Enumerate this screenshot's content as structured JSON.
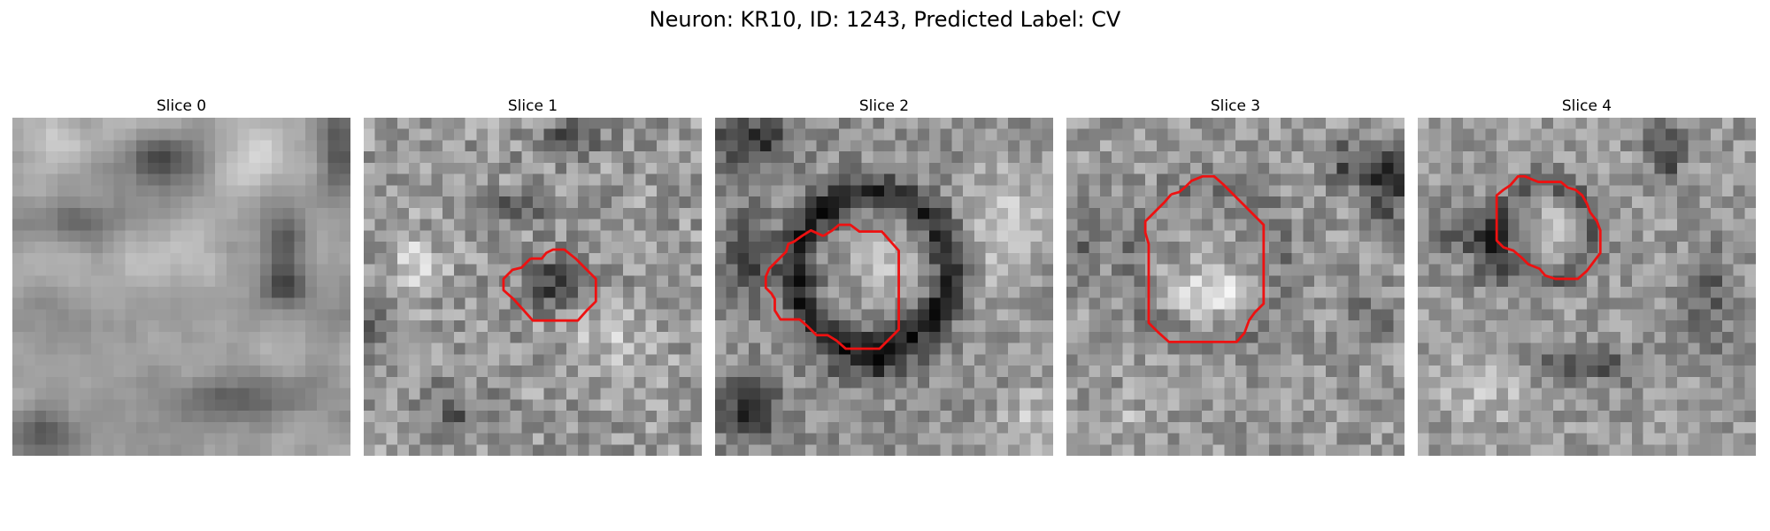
{
  "figure": {
    "title": "Neuron: KR10, ID: 1243, Predicted Label: CV",
    "contour_color": "#ee1111"
  },
  "panels": [
    {
      "title": "Slice 0",
      "pattern": "blurry-dark-vessel",
      "contour": []
    },
    {
      "title": "Slice 1",
      "pattern": "small-dark-cell",
      "contour": [
        [
          14.8,
          12.5
        ],
        [
          15.8,
          12.5
        ],
        [
          16.2,
          12.0
        ],
        [
          16.8,
          11.7
        ],
        [
          17.8,
          11.7
        ],
        [
          18.8,
          12.5
        ],
        [
          19.6,
          13.3
        ],
        [
          20.6,
          14.3
        ],
        [
          20.6,
          15.3
        ],
        [
          20.6,
          16.3
        ],
        [
          19.8,
          17.1
        ],
        [
          19.0,
          18.0
        ],
        [
          18.0,
          18.0
        ],
        [
          17.0,
          18.0
        ],
        [
          16.0,
          18.0
        ],
        [
          15.0,
          18.0
        ],
        [
          14.2,
          17.1
        ],
        [
          13.3,
          16.1
        ],
        [
          12.4,
          15.3
        ],
        [
          12.4,
          14.3
        ],
        [
          13.2,
          13.5
        ],
        [
          14.0,
          13.3
        ],
        [
          14.8,
          12.5
        ]
      ]
    },
    {
      "title": "Slice 2",
      "pattern": "ring-cell",
      "contour": [
        [
          9.6,
          10.5
        ],
        [
          10.4,
          10.0
        ],
        [
          11.0,
          9.5
        ],
        [
          12.0,
          9.5
        ],
        [
          12.8,
          10.1
        ],
        [
          13.8,
          10.1
        ],
        [
          14.8,
          10.1
        ],
        [
          15.5,
          10.9
        ],
        [
          16.3,
          11.8
        ],
        [
          16.3,
          12.8
        ],
        [
          16.3,
          13.8
        ],
        [
          16.3,
          14.8
        ],
        [
          16.3,
          15.8
        ],
        [
          16.3,
          16.8
        ],
        [
          16.3,
          17.8
        ],
        [
          16.3,
          18.8
        ],
        [
          15.5,
          19.6
        ],
        [
          14.6,
          20.5
        ],
        [
          13.6,
          20.5
        ],
        [
          12.6,
          20.5
        ],
        [
          11.6,
          20.5
        ],
        [
          10.8,
          19.8
        ],
        [
          10.0,
          19.3
        ],
        [
          9.0,
          19.3
        ],
        [
          8.2,
          18.5
        ],
        [
          7.5,
          17.9
        ],
        [
          5.8,
          17.9
        ],
        [
          5.3,
          17.1
        ],
        [
          5.3,
          16.1
        ],
        [
          5.0,
          15.6
        ],
        [
          4.5,
          15.1
        ],
        [
          4.5,
          14.1
        ],
        [
          4.8,
          13.4
        ],
        [
          5.3,
          12.9
        ],
        [
          6.3,
          11.9
        ],
        [
          6.5,
          11.2
        ],
        [
          7.0,
          11.0
        ],
        [
          7.7,
          10.5
        ],
        [
          8.5,
          10.0
        ],
        [
          9.6,
          10.5
        ]
      ]
    },
    {
      "title": "Slice 3",
      "pattern": "bright-nucleus",
      "contour": [
        [
          9.3,
          6.8
        ],
        [
          10.0,
          6.6
        ],
        [
          10.6,
          6.1
        ],
        [
          11.1,
          5.6
        ],
        [
          12.1,
          5.2
        ],
        [
          13.1,
          5.2
        ],
        [
          13.9,
          5.9
        ],
        [
          14.8,
          6.8
        ],
        [
          15.7,
          7.7
        ],
        [
          16.6,
          8.6
        ],
        [
          17.5,
          9.5
        ],
        [
          17.5,
          10.5
        ],
        [
          17.5,
          11.5
        ],
        [
          17.5,
          12.5
        ],
        [
          17.5,
          13.5
        ],
        [
          17.5,
          14.5
        ],
        [
          17.5,
          15.5
        ],
        [
          17.5,
          16.5
        ],
        [
          16.7,
          17.3
        ],
        [
          16.2,
          18.0
        ],
        [
          15.8,
          19.1
        ],
        [
          15.1,
          19.9
        ],
        [
          14.1,
          19.9
        ],
        [
          13.1,
          19.9
        ],
        [
          12.1,
          19.9
        ],
        [
          11.1,
          19.9
        ],
        [
          10.1,
          19.9
        ],
        [
          9.1,
          19.9
        ],
        [
          8.1,
          19.0
        ],
        [
          7.3,
          18.2
        ],
        [
          7.3,
          17.2
        ],
        [
          7.3,
          16.2
        ],
        [
          7.3,
          15.2
        ],
        [
          7.3,
          14.2
        ],
        [
          7.3,
          13.2
        ],
        [
          7.3,
          12.2
        ],
        [
          7.3,
          11.2
        ],
        [
          7.0,
          10.2
        ],
        [
          7.0,
          9.2
        ],
        [
          7.5,
          8.7
        ],
        [
          8.0,
          8.2
        ],
        [
          8.7,
          7.5
        ],
        [
          9.3,
          6.8
        ]
      ]
    },
    {
      "title": "Slice 4",
      "pattern": "oval-cell",
      "contour": [
        [
          8.2,
          6.0
        ],
        [
          8.9,
          5.2
        ],
        [
          9.5,
          5.2
        ],
        [
          10.2,
          5.5
        ],
        [
          10.7,
          5.7
        ],
        [
          11.7,
          5.7
        ],
        [
          12.7,
          5.7
        ],
        [
          13.3,
          6.2
        ],
        [
          14.0,
          6.4
        ],
        [
          14.6,
          6.9
        ],
        [
          15.0,
          7.6
        ],
        [
          15.3,
          8.4
        ],
        [
          15.9,
          9.2
        ],
        [
          16.2,
          10.0
        ],
        [
          16.2,
          11.0
        ],
        [
          16.2,
          12.0
        ],
        [
          15.6,
          12.8
        ],
        [
          15.0,
          13.6
        ],
        [
          14.2,
          14.3
        ],
        [
          13.2,
          14.3
        ],
        [
          12.2,
          14.3
        ],
        [
          11.3,
          14.0
        ],
        [
          10.8,
          13.4
        ],
        [
          9.8,
          13.0
        ],
        [
          9.2,
          12.4
        ],
        [
          8.5,
          11.8
        ],
        [
          7.6,
          11.5
        ],
        [
          7.0,
          10.9
        ],
        [
          7.0,
          9.9
        ],
        [
          7.0,
          8.9
        ],
        [
          7.0,
          7.9
        ],
        [
          7.0,
          6.9
        ],
        [
          7.6,
          6.4
        ],
        [
          8.2,
          6.0
        ]
      ]
    }
  ]
}
